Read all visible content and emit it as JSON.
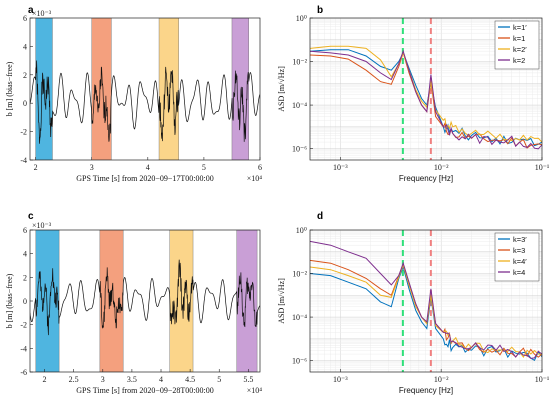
{
  "chart_data": [
    {
      "panel": "a",
      "type": "line",
      "exponent_label": "×10⁻³",
      "x_exponent_label": "×10⁴",
      "xlabel": "GPS Time [s] from 2020−09−17T00:00:00",
      "ylabel": "b [m] (bias−free)",
      "xlim": [
        1.9,
        6.0
      ],
      "ylim": [
        -4,
        6
      ],
      "x_ticks": [
        "2",
        "3",
        "4",
        "5",
        "6"
      ],
      "x_tick_values": [
        2,
        3,
        4,
        5,
        6
      ],
      "y_ticks": [
        "-4",
        "-2",
        "0",
        "2",
        "4",
        "6"
      ],
      "y_tick_values": [
        -4,
        -2,
        0,
        2,
        4,
        6
      ],
      "shaded_bands": [
        {
          "x0": 2.0,
          "x1": 2.3,
          "color": "#4fb5e0"
        },
        {
          "x0": 3.0,
          "x1": 3.35,
          "color": "#f4a07e"
        },
        {
          "x0": 4.2,
          "x1": 4.55,
          "color": "#fbd58a"
        },
        {
          "x0": 5.5,
          "x1": 5.8,
          "color": "#c99fd6"
        }
      ],
      "line_color": "#111111",
      "series_seed": 1
    },
    {
      "panel": "b",
      "type": "line",
      "xscale": "log",
      "yscale": "log",
      "xlabel": "Frequency [Hz]",
      "ylabel": "ASD [m/√Hz]",
      "xlim": [
        0.0005,
        0.1
      ],
      "ylim": [
        3e-07,
        1
      ],
      "x_ticks": [
        "10⁻³",
        "10⁻²",
        "10⁻¹"
      ],
      "x_tick_values": [
        0.001,
        0.01,
        0.1
      ],
      "y_ticks": [
        "10⁻⁶",
        "10⁻⁴",
        "10⁻²",
        "10⁰"
      ],
      "y_tick_values": [
        1e-06,
        0.0001,
        0.01,
        1
      ],
      "vlines": [
        {
          "x": 0.00417,
          "color": "#2fe07a"
        },
        {
          "x": 0.0079,
          "color": "#f08080"
        }
      ],
      "legend_position": "top-right",
      "series": [
        {
          "name": "k=1′",
          "color": "#0072BD",
          "x": [
            0.0005,
            0.0008,
            0.0012,
            0.0018,
            0.0025,
            0.0032,
            0.0038,
            0.0042,
            0.0048,
            0.0056,
            0.0064,
            0.0072,
            0.0079,
            0.0088,
            0.0105,
            0.013,
            0.02,
            0.035,
            0.06,
            0.1
          ],
          "y": [
            0.03,
            0.035,
            0.035,
            0.018,
            0.006,
            0.004,
            0.01,
            0.025,
            0.005,
            0.0008,
            0.0002,
            0.0001,
            0.001,
            8e-05,
            1e-05,
            6e-06,
            4e-06,
            3e-06,
            2.5e-06,
            2e-06
          ]
        },
        {
          "name": "k=1",
          "color": "#D95319",
          "x": [
            0.0005,
            0.0008,
            0.0012,
            0.0018,
            0.0025,
            0.0032,
            0.0038,
            0.0042,
            0.0048,
            0.0056,
            0.0064,
            0.0072,
            0.0079,
            0.0088,
            0.0105,
            0.013,
            0.02,
            0.035,
            0.06,
            0.1
          ],
          "y": [
            0.02,
            0.018,
            0.013,
            0.004,
            0.0012,
            0.0009,
            0.006,
            0.025,
            0.003,
            0.0004,
            0.0001,
            5e-05,
            0.0012,
            3e-05,
            1e-05,
            5e-06,
            3e-06,
            2.5e-06,
            2e-06,
            1.5e-06
          ]
        },
        {
          "name": "k=2′",
          "color": "#EDB120",
          "x": [
            0.0005,
            0.0008,
            0.0012,
            0.0018,
            0.0025,
            0.0032,
            0.0038,
            0.0042,
            0.0048,
            0.0056,
            0.0064,
            0.0072,
            0.0079,
            0.0088,
            0.0105,
            0.013,
            0.02,
            0.035,
            0.06,
            0.1
          ],
          "y": [
            0.04,
            0.05,
            0.05,
            0.04,
            0.012,
            0.002,
            0.008,
            0.025,
            0.004,
            0.0005,
            0.00015,
            8e-05,
            0.0012,
            6e-05,
            2e-05,
            1e-05,
            5e-06,
            3e-06,
            2.5e-06,
            2e-06
          ]
        },
        {
          "name": "k=2",
          "color": "#7E2F8E",
          "x": [
            0.0005,
            0.0008,
            0.0012,
            0.0018,
            0.0025,
            0.0032,
            0.0038,
            0.0042,
            0.0048,
            0.0056,
            0.0064,
            0.0072,
            0.0079,
            0.0088,
            0.0105,
            0.013,
            0.02,
            0.035,
            0.06,
            0.1
          ],
          "y": [
            0.03,
            0.025,
            0.02,
            0.01,
            0.003,
            0.0015,
            0.008,
            0.03,
            0.004,
            0.0004,
            0.0001,
            5e-05,
            0.0025,
            5e-05,
            1e-05,
            5e-06,
            3e-06,
            2.5e-06,
            2e-06,
            1.5e-06
          ]
        }
      ]
    },
    {
      "panel": "c",
      "type": "line",
      "exponent_label": "×10⁻³",
      "x_exponent_label": "×10⁴",
      "xlabel": "GPS Time [s] from 2020−09−28T00:00:00",
      "ylabel": "b [m] (bias−free)",
      "xlim": [
        1.75,
        5.7
      ],
      "ylim": [
        -6,
        6
      ],
      "x_ticks": [
        "2",
        "2.5",
        "3",
        "3.5",
        "4",
        "4.5",
        "5",
        "5.5"
      ],
      "x_tick_values": [
        2,
        2.5,
        3,
        3.5,
        4,
        4.5,
        5,
        5.5
      ],
      "y_ticks": [
        "-6",
        "-4",
        "-2",
        "0",
        "2",
        "4",
        "6"
      ],
      "y_tick_values": [
        -6,
        -4,
        -2,
        0,
        2,
        4,
        6
      ],
      "shaded_bands": [
        {
          "x0": 1.85,
          "x1": 2.25,
          "color": "#4fb5e0"
        },
        {
          "x0": 2.95,
          "x1": 3.35,
          "color": "#f4a07e"
        },
        {
          "x0": 4.15,
          "x1": 4.55,
          "color": "#fbd58a"
        },
        {
          "x0": 5.3,
          "x1": 5.65,
          "color": "#c99fd6"
        }
      ],
      "line_color": "#111111",
      "series_seed": 2
    },
    {
      "panel": "d",
      "type": "line",
      "xscale": "log",
      "yscale": "log",
      "xlabel": "Frequency [Hz]",
      "ylabel": "ASD [m/√Hz]",
      "xlim": [
        0.0005,
        0.1
      ],
      "ylim": [
        3e-07,
        1
      ],
      "x_ticks": [
        "10⁻³",
        "10⁻²",
        "10⁻¹"
      ],
      "x_tick_values": [
        0.001,
        0.01,
        0.1
      ],
      "y_ticks": [
        "10⁻⁶",
        "10⁻⁴",
        "10⁻²",
        "10⁰"
      ],
      "y_tick_values": [
        1e-06,
        0.0001,
        0.01,
        1
      ],
      "vlines": [
        {
          "x": 0.00417,
          "color": "#2fe07a"
        },
        {
          "x": 0.0079,
          "color": "#f08080"
        }
      ],
      "legend_position": "top-right",
      "series": [
        {
          "name": "k=3′",
          "color": "#0072BD",
          "x": [
            0.0005,
            0.0008,
            0.0012,
            0.0018,
            0.0025,
            0.0032,
            0.0038,
            0.0042,
            0.0048,
            0.0056,
            0.0064,
            0.0072,
            0.0079,
            0.0088,
            0.0105,
            0.013,
            0.02,
            0.035,
            0.06,
            0.1
          ],
          "y": [
            0.01,
            0.008,
            0.004,
            0.002,
            0.0005,
            0.0003,
            0.006,
            0.02,
            0.002,
            0.0002,
            6e-05,
            3e-05,
            0.0008,
            3e-05,
            1e-05,
            4e-06,
            3e-06,
            2.5e-06,
            2e-06,
            1.5e-06
          ]
        },
        {
          "name": "k=3",
          "color": "#D95319",
          "x": [
            0.0005,
            0.0008,
            0.0012,
            0.0018,
            0.0025,
            0.0032,
            0.0038,
            0.0042,
            0.0048,
            0.0056,
            0.0064,
            0.0072,
            0.0079,
            0.0088,
            0.0105,
            0.013,
            0.02,
            0.035,
            0.06,
            0.1
          ],
          "y": [
            0.04,
            0.03,
            0.015,
            0.006,
            0.002,
            0.001,
            0.008,
            0.025,
            0.003,
            0.0004,
            0.0001,
            5e-05,
            0.001,
            5e-05,
            2e-05,
            8e-06,
            4e-06,
            3e-06,
            2.5e-06,
            2e-06
          ]
        },
        {
          "name": "k=4′",
          "color": "#EDB120",
          "x": [
            0.0005,
            0.0008,
            0.0012,
            0.0018,
            0.0025,
            0.0032,
            0.0038,
            0.0042,
            0.0048,
            0.0056,
            0.0064,
            0.0072,
            0.0079,
            0.0088,
            0.0105,
            0.013,
            0.02,
            0.035,
            0.06,
            0.1
          ],
          "y": [
            0.02,
            0.015,
            0.008,
            0.004,
            0.001,
            0.0008,
            0.007,
            0.025,
            0.003,
            0.0003,
            0.0001,
            5e-05,
            0.001,
            4e-05,
            2e-05,
            8e-06,
            4e-06,
            3e-06,
            2.5e-06,
            2e-06
          ]
        },
        {
          "name": "k=4",
          "color": "#7E2F8E",
          "x": [
            0.0005,
            0.0008,
            0.0012,
            0.0018,
            0.0025,
            0.0032,
            0.0038,
            0.0042,
            0.0048,
            0.0056,
            0.0064,
            0.0072,
            0.0079,
            0.0088,
            0.0105,
            0.013,
            0.02,
            0.035,
            0.06,
            0.1
          ],
          "y": [
            0.3,
            0.2,
            0.1,
            0.05,
            0.01,
            0.003,
            0.008,
            0.03,
            0.004,
            0.0004,
            0.0001,
            6e-05,
            0.002,
            5e-05,
            2e-05,
            8e-06,
            4e-06,
            3e-06,
            2.5e-06,
            2e-06
          ]
        }
      ]
    }
  ]
}
